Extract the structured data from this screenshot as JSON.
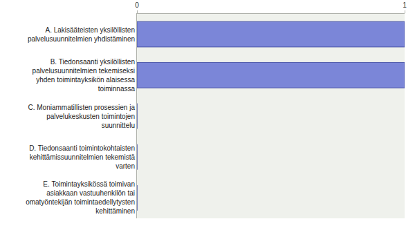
{
  "chart_data": {
    "type": "bar",
    "orientation": "horizontal",
    "categories": [
      "A. Lakisääteisten yksilöllisten palvelusuunnitelmien yhdistäminen",
      "B. Tiedonsaanti yksilöllisten palvelusuunnitelmien tekemiseksi yhden toimintayksikön alaisessa toiminnassa",
      "C. Moniammatillisten prosessien ja palvelukeskusten toimintojen suunnittelu",
      "D. Tiedonsaanti toimintokohtaisten kehittämissuunnitelmien tekemistä varten",
      "E. Toimintayksikössä toimivan asiakkaan vastuuhenkilön tai omatyöntekijän toimintaedellytysten kehittäminen"
    ],
    "values": [
      1,
      1,
      0,
      0,
      0
    ],
    "color": "#7b86d8",
    "xlim": [
      0,
      1
    ],
    "xticks": [
      0,
      1
    ],
    "grid": true
  }
}
